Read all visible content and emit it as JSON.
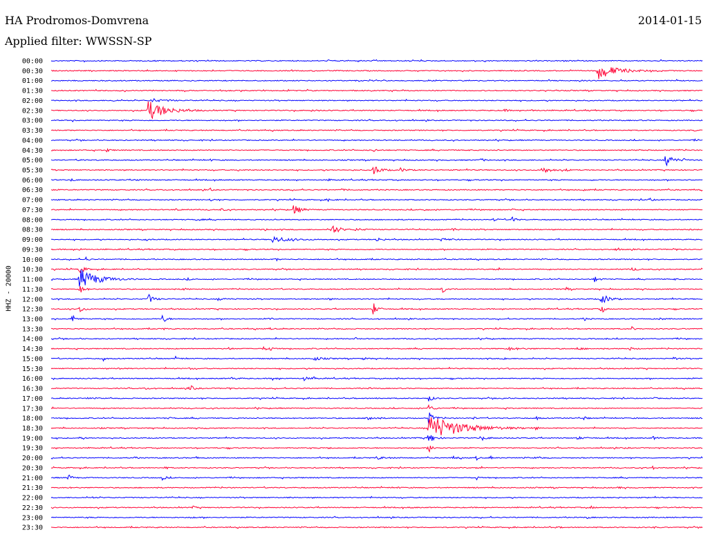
{
  "header": {
    "station": "HA Prodromos-Domvrena",
    "filter": "Applied filter: WWSSN-SP",
    "date": "2014-01-15",
    "channel": "HHZ - 20000"
  },
  "chart_data": {
    "type": "helicorder",
    "title": "HA Prodromos-Domvrena",
    "date": "2014-01-15",
    "filter": "WWSSN-SP",
    "ylabel": "HHZ - 20000",
    "row_colors": [
      "#0000ff",
      "#ff0033"
    ],
    "rows": [
      {
        "label": "00:00",
        "events": [
          [
            48,
            0.6,
            3
          ],
          [
            150,
            0.5,
            3
          ],
          [
            400,
            0.8,
            5
          ],
          [
            700,
            0.4,
            3
          ]
        ]
      },
      {
        "label": "00:30",
        "events": [
          [
            60,
            0.3,
            2
          ],
          [
            790,
            7.0,
            22
          ],
          [
            860,
            0.3,
            2
          ]
        ]
      },
      {
        "label": "01:00",
        "events": [
          [
            100,
            0.3,
            2
          ],
          [
            600,
            0.3,
            2
          ]
        ]
      },
      {
        "label": "01:30",
        "events": [
          [
            180,
            0.3,
            2
          ],
          [
            950,
            0.3,
            2
          ]
        ]
      },
      {
        "label": "02:00",
        "events": [
          [
            90,
            0.8,
            4
          ],
          [
            145,
            1.8,
            10
          ],
          [
            170,
            0.8,
            4
          ]
        ]
      },
      {
        "label": "02:30",
        "events": [
          [
            140,
            8.0,
            22
          ],
          [
            375,
            1.0,
            4
          ],
          [
            655,
            1.2,
            4
          ],
          [
            695,
            0.9,
            4
          ]
        ]
      },
      {
        "label": "03:00",
        "events": [
          [
            30,
            0.5,
            3
          ],
          [
            500,
            0.3,
            3
          ],
          [
            850,
            0.3,
            3
          ]
        ]
      },
      {
        "label": "03:30",
        "events": [
          [
            300,
            0.3,
            2
          ],
          [
            930,
            0.6,
            2
          ]
        ]
      },
      {
        "label": "04:00",
        "events": [
          [
            700,
            0.3,
            2
          ],
          [
            930,
            0.6,
            2
          ]
        ]
      },
      {
        "label": "04:30",
        "events": [
          [
            80,
            1.5,
            4
          ],
          [
            465,
            1.8,
            4
          ],
          [
            600,
            0.6,
            3
          ],
          [
            850,
            0.7,
            3
          ]
        ]
      },
      {
        "label": "05:00",
        "events": [
          [
            40,
            1.2,
            4
          ],
          [
            230,
            0.8,
            4
          ],
          [
            620,
            1.5,
            5
          ],
          [
            888,
            5.0,
            10
          ],
          [
            915,
            1.0,
            4
          ]
        ]
      },
      {
        "label": "05:30",
        "events": [
          [
            270,
            0.8,
            4
          ],
          [
            465,
            5.0,
            8
          ],
          [
            505,
            1.5,
            8
          ],
          [
            710,
            3.5,
            8
          ],
          [
            745,
            1.0,
            3
          ]
        ]
      },
      {
        "label": "06:00",
        "events": [
          [
            30,
            1.2,
            3
          ],
          [
            120,
            0.8,
            5
          ],
          [
            400,
            0.8,
            5
          ],
          [
            780,
            0.8,
            4
          ]
        ]
      },
      {
        "label": "06:30",
        "events": [
          [
            230,
            1.8,
            2
          ],
          [
            420,
            0.8,
            3
          ],
          [
            770,
            0.8,
            3
          ]
        ]
      },
      {
        "label": "07:00",
        "events": [
          [
            230,
            1.5,
            3
          ],
          [
            400,
            1.0,
            5
          ],
          [
            865,
            1.8,
            3
          ]
        ]
      },
      {
        "label": "07:30",
        "events": [
          [
            180,
            0.9,
            5
          ],
          [
            245,
            1.2,
            4
          ],
          [
            350,
            4.5,
            8
          ],
          [
            540,
            0.9,
            3
          ],
          [
            665,
            1.2,
            3
          ]
        ]
      },
      {
        "label": "08:00",
        "events": [
          [
            210,
            1.5,
            4
          ],
          [
            640,
            1.8,
            4
          ],
          [
            665,
            4.0,
            4
          ]
        ]
      },
      {
        "label": "08:30",
        "events": [
          [
            308,
            1.2,
            3
          ],
          [
            405,
            5.0,
            8
          ],
          [
            440,
            1.2,
            8
          ],
          [
            580,
            3.0,
            3
          ],
          [
            920,
            0.8,
            3
          ]
        ]
      },
      {
        "label": "09:00",
        "events": [
          [
            135,
            1.2,
            5
          ],
          [
            320,
            2.5,
            20
          ],
          [
            470,
            1.8,
            6
          ],
          [
            565,
            1.2,
            6
          ],
          [
            580,
            2.5,
            2
          ]
        ]
      },
      {
        "label": "09:30",
        "events": [
          [
            40,
            0.9,
            4
          ],
          [
            815,
            0.8,
            6
          ],
          [
            900,
            0.7,
            5
          ]
        ]
      },
      {
        "label": "10:00",
        "events": [
          [
            50,
            2.0,
            3
          ],
          [
            325,
            2.0,
            2
          ],
          [
            590,
            0.8,
            3
          ]
        ]
      },
      {
        "label": "10:30",
        "events": [
          [
            40,
            4.0,
            6
          ],
          [
            640,
            1.8,
            4
          ],
          [
            840,
            1.2,
            6
          ]
        ]
      },
      {
        "label": "11:00",
        "events": [
          [
            40,
            9.0,
            22
          ],
          [
            195,
            0.8,
            5
          ],
          [
            785,
            2.8,
            5
          ],
          [
            900,
            0.8,
            4
          ]
        ]
      },
      {
        "label": "11:30",
        "events": [
          [
            40,
            4.0,
            6
          ],
          [
            190,
            1.2,
            4
          ],
          [
            565,
            4.0,
            5
          ],
          [
            745,
            1.2,
            4
          ]
        ]
      },
      {
        "label": "12:00",
        "events": [
          [
            140,
            4.5,
            6
          ],
          [
            240,
            0.9,
            12
          ],
          [
            795,
            4.5,
            10
          ],
          [
            400,
            0.8,
            5
          ]
        ]
      },
      {
        "label": "12:30",
        "events": [
          [
            40,
            4.0,
            5
          ],
          [
            465,
            6.0,
            5
          ],
          [
            795,
            6.0,
            3
          ]
        ]
      },
      {
        "label": "13:00",
        "events": [
          [
            30,
            3.5,
            5
          ],
          [
            160,
            4.0,
            5
          ],
          [
            315,
            2.0,
            3
          ],
          [
            770,
            1.5,
            4
          ],
          [
            880,
            1.2,
            4
          ]
        ]
      },
      {
        "label": "13:30",
        "events": [
          [
            160,
            1.2,
            3
          ],
          [
            315,
            1.0,
            3
          ],
          [
            840,
            1.5,
            3
          ]
        ]
      },
      {
        "label": "14:00",
        "events": [
          [
            440,
            0.8,
            3
          ],
          [
            630,
            0.6,
            3
          ],
          [
            800,
            0.6,
            3
          ]
        ]
      },
      {
        "label": "14:30",
        "events": [
          [
            255,
            2.5,
            3
          ],
          [
            305,
            1.5,
            8
          ],
          [
            315,
            4.0,
            2
          ],
          [
            660,
            1.2,
            15
          ],
          [
            760,
            1.0,
            8
          ],
          [
            835,
            1.5,
            5
          ]
        ]
      },
      {
        "label": "15:00",
        "events": [
          [
            75,
            2.5,
            2
          ],
          [
            180,
            0.9,
            5
          ],
          [
            380,
            1.5,
            10
          ],
          [
            450,
            1.5,
            4
          ],
          [
            655,
            2.5,
            2
          ],
          [
            900,
            1.5,
            4
          ]
        ]
      },
      {
        "label": "15:30",
        "events": [
          [
            95,
            1.2,
            5
          ],
          [
            200,
            0.8,
            4
          ],
          [
            660,
            1.5,
            2
          ]
        ]
      },
      {
        "label": "16:00",
        "events": [
          [
            260,
            0.9,
            8
          ],
          [
            320,
            1.5,
            4
          ],
          [
            365,
            1.8,
            5
          ],
          [
            380,
            2.0,
            2
          ],
          [
            500,
            0.8,
            4
          ]
        ]
      },
      {
        "label": "16:30",
        "events": [
          [
            135,
            1.0,
            5
          ],
          [
            200,
            3.0,
            5
          ],
          [
            255,
            0.8,
            4
          ],
          [
            460,
            0.8,
            3
          ]
        ]
      },
      {
        "label": "17:00",
        "events": [
          [
            50,
            0.8,
            4
          ],
          [
            470,
            1.2,
            2
          ],
          [
            545,
            3.0,
            5
          ],
          [
            650,
            0.8,
            4
          ],
          [
            870,
            0.8,
            4
          ]
        ]
      },
      {
        "label": "17:30",
        "events": [
          [
            300,
            0.5,
            3
          ],
          [
            545,
            4.0,
            5
          ],
          [
            660,
            1.0,
            3
          ]
        ]
      },
      {
        "label": "18:00",
        "events": [
          [
            170,
            0.8,
            4
          ],
          [
            455,
            2.8,
            8
          ],
          [
            545,
            6.0,
            6
          ],
          [
            610,
            1.2,
            3
          ],
          [
            700,
            2.5,
            3
          ],
          [
            770,
            1.2,
            4
          ]
        ]
      },
      {
        "label": "18:30",
        "events": [
          [
            70,
            0.6,
            3
          ],
          [
            220,
            0.8,
            3
          ],
          [
            545,
            11.0,
            40
          ],
          [
            700,
            1.2,
            3
          ]
        ]
      },
      {
        "label": "19:00",
        "events": [
          [
            40,
            0.8,
            5
          ],
          [
            545,
            6.0,
            6
          ],
          [
            620,
            1.2,
            10
          ],
          [
            760,
            1.0,
            10
          ],
          [
            870,
            1.2,
            5
          ]
        ]
      },
      {
        "label": "19:30",
        "events": [
          [
            400,
            2.8,
            3
          ],
          [
            545,
            4.0,
            6
          ],
          [
            830,
            0.8,
            3
          ]
        ]
      },
      {
        "label": "20:00",
        "events": [
          [
            120,
            0.8,
            4
          ],
          [
            210,
            1.5,
            3
          ],
          [
            470,
            1.2,
            10
          ],
          [
            580,
            1.5,
            5
          ],
          [
            615,
            2.5,
            2
          ],
          [
            635,
            2.0,
            2
          ],
          [
            700,
            1.0,
            6
          ]
        ]
      },
      {
        "label": "20:30",
        "events": [
          [
            165,
            1.2,
            3
          ],
          [
            615,
            2.5,
            2
          ],
          [
            870,
            1.2,
            4
          ]
        ]
      },
      {
        "label": "21:00",
        "events": [
          [
            25,
            3.0,
            4
          ],
          [
            160,
            2.5,
            4
          ],
          [
            615,
            2.0,
            2
          ]
        ]
      },
      {
        "label": "21:30",
        "events": [
          [
            25,
            1.2,
            2
          ],
          [
            500,
            0.5,
            4
          ],
          [
            820,
            0.8,
            4
          ]
        ]
      },
      {
        "label": "22:00",
        "events": [
          [
            60,
            0.5,
            2
          ],
          [
            345,
            0.5,
            2
          ],
          [
            820,
            0.5,
            2
          ]
        ]
      },
      {
        "label": "22:30",
        "events": [
          [
            205,
            1.0,
            4
          ],
          [
            520,
            1.0,
            3
          ],
          [
            780,
            1.2,
            4
          ]
        ]
      },
      {
        "label": "23:00",
        "events": [
          [
            205,
            1.2,
            2
          ],
          [
            775,
            0.8,
            3
          ],
          [
            860,
            0.6,
            3
          ]
        ]
      },
      {
        "label": "23:30",
        "events": [
          [
            160,
            0.3,
            3
          ],
          [
            730,
            0.8,
            5
          ],
          [
            870,
            0.8,
            3
          ]
        ]
      }
    ]
  }
}
